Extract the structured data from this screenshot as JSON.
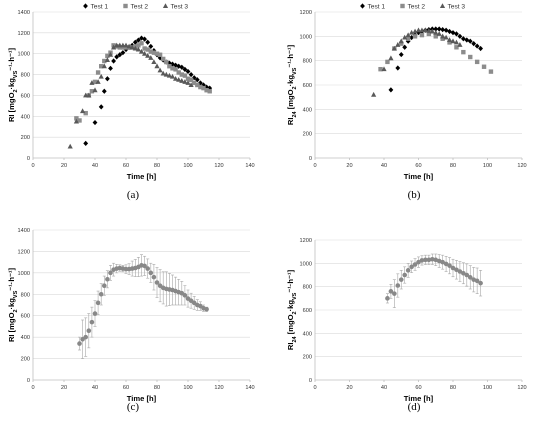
{
  "colors": {
    "test1": "#000000",
    "test2": "#8c8c8c",
    "test3": "#595959",
    "mean": "#888888",
    "errorbar": "#a6a6a6",
    "grid": "#d9d9d9",
    "axis": "#bfbfbf"
  },
  "chart_data": [
    {
      "panel": "a",
      "caption": "(a)",
      "type": "scatter",
      "xlabel": "Time [h]",
      "ylabel_parts": [
        "RI [mgO",
        "2",
        "·kg",
        "VS",
        "⁻¹·h⁻¹]"
      ],
      "xlim": [
        0,
        140
      ],
      "ylim": [
        0,
        1400
      ],
      "xticks": [
        0,
        20,
        40,
        60,
        80,
        100,
        120,
        140
      ],
      "yticks": [
        0,
        200,
        400,
        600,
        800,
        1000,
        1200,
        1400
      ],
      "legend": "top",
      "series": [
        {
          "name": "Test 1",
          "marker": "diamond",
          "x": [
            34,
            40,
            44,
            46,
            48,
            50,
            52,
            54,
            56,
            58,
            60,
            62,
            64,
            66,
            68,
            70,
            72,
            74,
            76,
            78,
            80,
            82,
            84,
            86,
            88,
            90,
            92,
            94,
            96,
            98,
            100,
            102,
            104,
            106,
            108,
            110,
            112,
            114
          ],
          "y": [
            140,
            340,
            490,
            640,
            760,
            860,
            930,
            970,
            990,
            1010,
            1040,
            1060,
            1080,
            1110,
            1130,
            1150,
            1140,
            1110,
            1070,
            1030,
            990,
            960,
            940,
            920,
            910,
            900,
            890,
            880,
            870,
            850,
            830,
            800,
            770,
            750,
            720,
            700,
            680,
            670
          ]
        },
        {
          "name": "Test 2",
          "marker": "square",
          "x": [
            28,
            30,
            34,
            36,
            38,
            40,
            42,
            44,
            46,
            48,
            50,
            52,
            54,
            56,
            58,
            60,
            62,
            64,
            66,
            68,
            70,
            72,
            74,
            76,
            78,
            80,
            82,
            84,
            86,
            88,
            90,
            92,
            94,
            96,
            98,
            100,
            102,
            104,
            106,
            108,
            110,
            112,
            114
          ],
          "y": [
            380,
            360,
            430,
            600,
            640,
            730,
            820,
            880,
            930,
            980,
            1010,
            1080,
            1070,
            1060,
            1060,
            1060,
            1060,
            1060,
            1070,
            1080,
            1100,
            1050,
            1040,
            1020,
            1010,
            1000,
            990,
            950,
            920,
            880,
            860,
            850,
            820,
            800,
            790,
            760,
            750,
            720,
            700,
            680,
            670,
            650,
            640
          ]
        },
        {
          "name": "Test 3",
          "marker": "triangle",
          "x": [
            24,
            28,
            32,
            34,
            36,
            38,
            40,
            42,
            44,
            46,
            48,
            50,
            52,
            54,
            56,
            58,
            60,
            62,
            64,
            66,
            68,
            70,
            72,
            74,
            76,
            78,
            80,
            82,
            84,
            86,
            88,
            90,
            92,
            94,
            96,
            98,
            100,
            102
          ],
          "y": [
            110,
            350,
            450,
            600,
            600,
            720,
            650,
            730,
            780,
            880,
            940,
            990,
            1060,
            1080,
            1080,
            1080,
            1080,
            1070,
            1060,
            1050,
            1040,
            1020,
            1000,
            980,
            960,
            920,
            880,
            840,
            810,
            800,
            790,
            780,
            760,
            750,
            740,
            730,
            720,
            700
          ]
        }
      ]
    },
    {
      "panel": "b",
      "caption": "(b)",
      "type": "scatter",
      "xlabel": "Time [h]",
      "ylabel_parts": [
        "RI",
        "24",
        " [mgO",
        "2",
        "·kg",
        "VS",
        "⁻¹·h⁻¹]"
      ],
      "xlim": [
        0,
        120
      ],
      "ylim": [
        0,
        1200
      ],
      "xticks": [
        0,
        20,
        40,
        60,
        80,
        100,
        120
      ],
      "yticks": [
        0,
        200,
        400,
        600,
        800,
        1000,
        1200
      ],
      "legend": "top",
      "series": [
        {
          "name": "Test 1",
          "marker": "diamond",
          "x": [
            44,
            48,
            50,
            52,
            54,
            56,
            58,
            60,
            62,
            64,
            66,
            68,
            70,
            72,
            74,
            76,
            78,
            80,
            82,
            84,
            86,
            88,
            90,
            92,
            94,
            96
          ],
          "y": [
            560,
            740,
            850,
            910,
            960,
            990,
            1010,
            1030,
            1040,
            1050,
            1055,
            1060,
            1060,
            1060,
            1055,
            1050,
            1040,
            1030,
            1020,
            1000,
            980,
            970,
            960,
            940,
            920,
            900
          ]
        },
        {
          "name": "Test 2",
          "marker": "square",
          "x": [
            38,
            42,
            46,
            50,
            54,
            58,
            62,
            66,
            70,
            74,
            78,
            82,
            86,
            90,
            94,
            98,
            102
          ],
          "y": [
            730,
            790,
            900,
            940,
            980,
            1000,
            1010,
            1020,
            1000,
            980,
            950,
            910,
            870,
            830,
            790,
            750,
            710
          ]
        },
        {
          "name": "Test 3",
          "marker": "triangle",
          "x": [
            34,
            40,
            44,
            46,
            48,
            50,
            52,
            54,
            56,
            58,
            60,
            62,
            64,
            66,
            68,
            70,
            72,
            74,
            76,
            78,
            80,
            82,
            84
          ],
          "y": [
            520,
            730,
            820,
            900,
            930,
            960,
            990,
            1010,
            1030,
            1040,
            1050,
            1050,
            1050,
            1045,
            1040,
            1030,
            1020,
            1000,
            990,
            970,
            960,
            950,
            930
          ]
        }
      ]
    },
    {
      "panel": "c",
      "caption": "(c)",
      "type": "scatter",
      "xlabel": "Time [h]",
      "ylabel_parts": [
        "RI [mgO",
        "2",
        "·kg",
        "VS",
        "⁻¹·h⁻¹]"
      ],
      "xlim": [
        0,
        140
      ],
      "ylim": [
        0,
        1400
      ],
      "xticks": [
        0,
        20,
        40,
        60,
        80,
        100,
        120,
        140
      ],
      "yticks": [
        0,
        200,
        400,
        600,
        800,
        1000,
        1200,
        1400
      ],
      "series": [
        {
          "name": "",
          "marker": "circle",
          "error_bars": true,
          "x": [
            30,
            32,
            34,
            36,
            38,
            40,
            42,
            44,
            46,
            48,
            50,
            52,
            54,
            56,
            58,
            60,
            62,
            64,
            66,
            68,
            70,
            72,
            74,
            76,
            78,
            80,
            82,
            84,
            86,
            88,
            90,
            92,
            94,
            96,
            98,
            100,
            102,
            104,
            106,
            108,
            110,
            112
          ],
          "y": [
            340,
            380,
            400,
            460,
            540,
            620,
            720,
            800,
            880,
            940,
            1000,
            1030,
            1040,
            1045,
            1040,
            1035,
            1035,
            1040,
            1045,
            1055,
            1070,
            1065,
            1040,
            1000,
            960,
            910,
            880,
            860,
            850,
            845,
            840,
            830,
            820,
            810,
            790,
            760,
            740,
            720,
            700,
            690,
            670,
            660
          ],
          "err": [
            60,
            180,
            180,
            160,
            140,
            120,
            110,
            100,
            90,
            80,
            70,
            60,
            40,
            30,
            30,
            40,
            50,
            70,
            80,
            90,
            100,
            90,
            90,
            90,
            120,
            140,
            150,
            150,
            160,
            150,
            140,
            130,
            120,
            110,
            90,
            80,
            70,
            60,
            50,
            40,
            30,
            20
          ]
        }
      ]
    },
    {
      "panel": "d",
      "caption": "(d)",
      "type": "scatter",
      "xlabel": "Time [h]",
      "ylabel_parts": [
        "RI",
        "24",
        " [mgO",
        "2",
        "·kg",
        "VS",
        "⁻¹·h⁻¹]"
      ],
      "xlim": [
        0,
        120
      ],
      "ylim": [
        0,
        1200
      ],
      "xticks": [
        0,
        20,
        40,
        60,
        80,
        100,
        120
      ],
      "yticks": [
        0,
        200,
        400,
        600,
        800,
        1000,
        1200
      ],
      "series": [
        {
          "name": "",
          "marker": "circle",
          "error_bars": true,
          "x": [
            42,
            44,
            46,
            48,
            50,
            52,
            54,
            56,
            58,
            60,
            62,
            64,
            66,
            68,
            70,
            72,
            74,
            76,
            78,
            80,
            82,
            84,
            86,
            88,
            90,
            92,
            94,
            96
          ],
          "y": [
            700,
            760,
            740,
            810,
            860,
            900,
            940,
            970,
            990,
            1010,
            1025,
            1030,
            1030,
            1035,
            1030,
            1020,
            1010,
            995,
            980,
            960,
            945,
            930,
            915,
            900,
            880,
            860,
            850,
            830
          ],
          "err": [
            40,
            60,
            120,
            100,
            80,
            70,
            60,
            50,
            50,
            45,
            40,
            40,
            40,
            45,
            50,
            55,
            60,
            65,
            70,
            75,
            80,
            85,
            90,
            95,
            100,
            105,
            110,
            110
          ]
        }
      ]
    }
  ]
}
